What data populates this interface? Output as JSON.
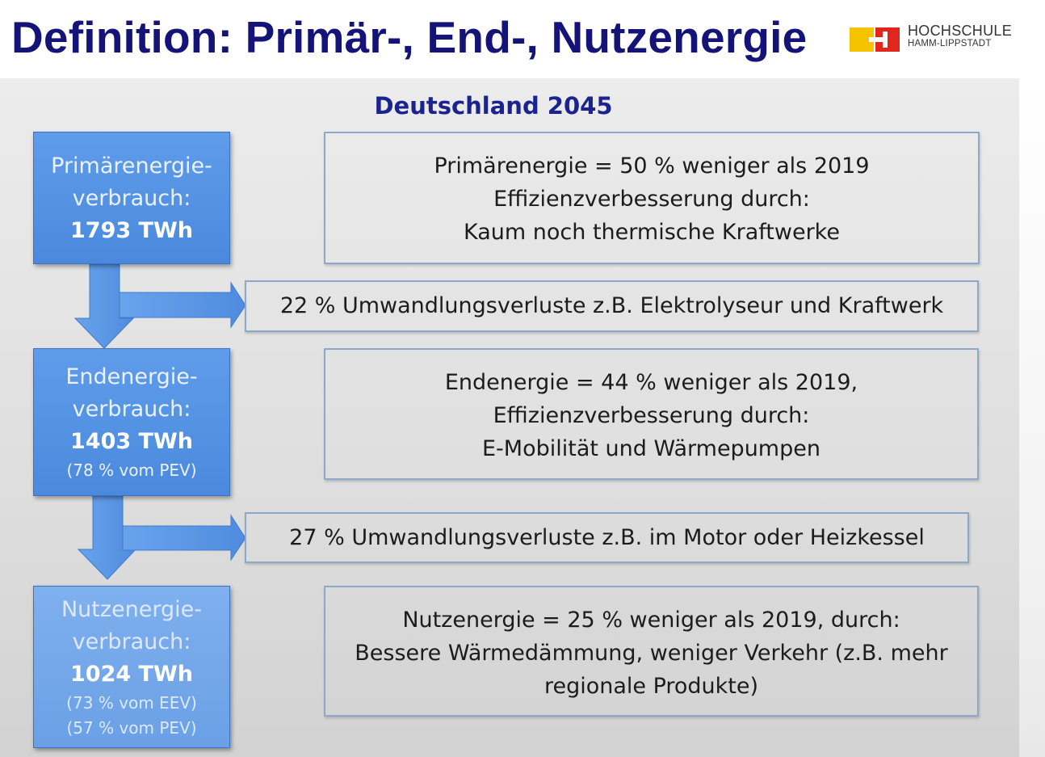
{
  "header": {
    "title": "Definition: Primär-, End-, Nutzenergie",
    "logo": {
      "line1": "HOCHSCHULE",
      "line2": "HAMM-LIPPSTADT",
      "colors": [
        "#f5c400",
        "#e2261d"
      ]
    }
  },
  "diagram": {
    "subtitle": "Deutschland 2045",
    "stages": [
      {
        "label1": "Primärenergie-",
        "label2": "verbrauch:",
        "value": "1793 TWh",
        "notes": [],
        "info": [
          "Primärenergie = 50 % weniger als 2019",
          "Effizienzverbesserung durch:",
          "Kaum noch thermische Kraftwerke"
        ]
      },
      {
        "label1": "Endenergie-",
        "label2": "verbrauch:",
        "value": "1403 TWh",
        "notes": [
          "(78 % vom PEV)"
        ],
        "info": [
          "Endenergie = 44 % weniger als 2019,",
          "Effizienzverbesserung durch:",
          "E-Mobilität und Wärmepumpen"
        ]
      },
      {
        "label1": "Nutzenergie-",
        "label2": "verbrauch:",
        "value": "1024 TWh",
        "notes": [
          "(73 % vom EEV)",
          "(57 % vom PEV)"
        ],
        "info": [
          "Nutzenergie = 25 % weniger als 2019, durch:",
          "Bessere Wärmedämmung, weniger Verkehr (z.B. mehr",
          "regionale Produkte)"
        ]
      }
    ],
    "losses": [
      "22 % Umwandlungsverluste z.B. Elektrolyseur und Kraftwerk",
      "27 % Umwandlungsverluste z.B. im Motor oder Heizkessel"
    ],
    "colors": {
      "box_blue": "#4a89dd",
      "arrow_blue": "#5a96e6",
      "title_navy": "#141478",
      "frame": "#8ea8cc"
    }
  }
}
